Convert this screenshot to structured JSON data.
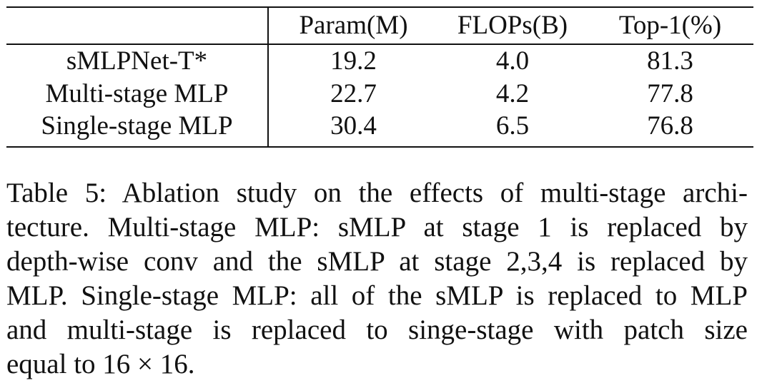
{
  "table": {
    "columns": [
      "",
      "Param(M)",
      "FLOPs(B)",
      "Top-1(%)"
    ],
    "rows": [
      {
        "name": "sMLPNet-T*",
        "param": "19.2",
        "flops": "4.0",
        "top1": "81.3"
      },
      {
        "name": "Multi-stage MLP",
        "param": "22.7",
        "flops": "4.2",
        "top1": "77.8"
      },
      {
        "name": "Single-stage MLP",
        "param": "30.4",
        "flops": "6.5",
        "top1": "76.8"
      }
    ]
  },
  "caption": {
    "lines": [
      "Table 5: Ablation study on the effects of multi-stage archi-",
      "tecture. Multi-stage MLP: sMLP at stage 1 is replaced by",
      "depth-wise conv and the sMLP at stage 2,3,4 is replaced by",
      "MLP. Single-stage MLP: all of the sMLP is replaced to MLP",
      "and multi-stage is replaced to singe-stage with patch size",
      "equal to 16 × 16."
    ]
  }
}
